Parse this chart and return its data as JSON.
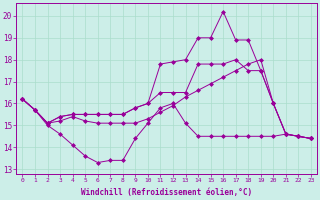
{
  "background_color": "#cceee8",
  "grid_color": "#aaddcc",
  "line_color": "#990099",
  "spine_color": "#660066",
  "xlabel": "Windchill (Refroidissement éolien,°C)",
  "ylim": [
    12.8,
    20.6
  ],
  "xlim": [
    -0.5,
    23.5
  ],
  "yticks": [
    13,
    14,
    15,
    16,
    17,
    18,
    19,
    20
  ],
  "xticks": [
    0,
    1,
    2,
    3,
    4,
    5,
    6,
    7,
    8,
    9,
    10,
    11,
    12,
    13,
    14,
    15,
    16,
    17,
    18,
    19,
    20,
    21,
    22,
    23
  ],
  "s1": [
    16.2,
    15.7,
    15.0,
    14.6,
    14.1,
    13.6,
    13.3,
    13.4,
    13.4,
    14.4,
    15.1,
    15.8,
    16.0,
    15.1,
    14.5,
    14.5,
    14.5,
    14.5,
    14.5,
    14.5,
    14.5,
    14.6,
    14.5,
    14.4
  ],
  "s2": [
    16.2,
    15.7,
    15.1,
    15.2,
    15.4,
    15.2,
    15.1,
    15.1,
    15.1,
    15.1,
    15.3,
    15.6,
    15.9,
    16.3,
    16.6,
    16.9,
    17.2,
    17.5,
    17.8,
    18.0,
    16.0,
    14.6,
    14.5,
    14.4
  ],
  "s3": [
    16.2,
    15.7,
    15.1,
    15.4,
    15.5,
    15.5,
    15.5,
    15.5,
    15.5,
    15.8,
    16.0,
    16.5,
    16.5,
    16.5,
    17.8,
    17.8,
    17.8,
    18.0,
    17.5,
    17.5,
    16.0,
    14.6,
    14.5,
    14.4
  ],
  "s4": [
    16.2,
    15.7,
    15.1,
    15.4,
    15.5,
    15.5,
    15.5,
    15.5,
    15.5,
    15.8,
    16.0,
    17.8,
    17.9,
    18.0,
    19.0,
    19.0,
    20.2,
    18.9,
    18.9,
    17.5,
    16.0,
    14.6,
    14.5,
    14.4
  ]
}
